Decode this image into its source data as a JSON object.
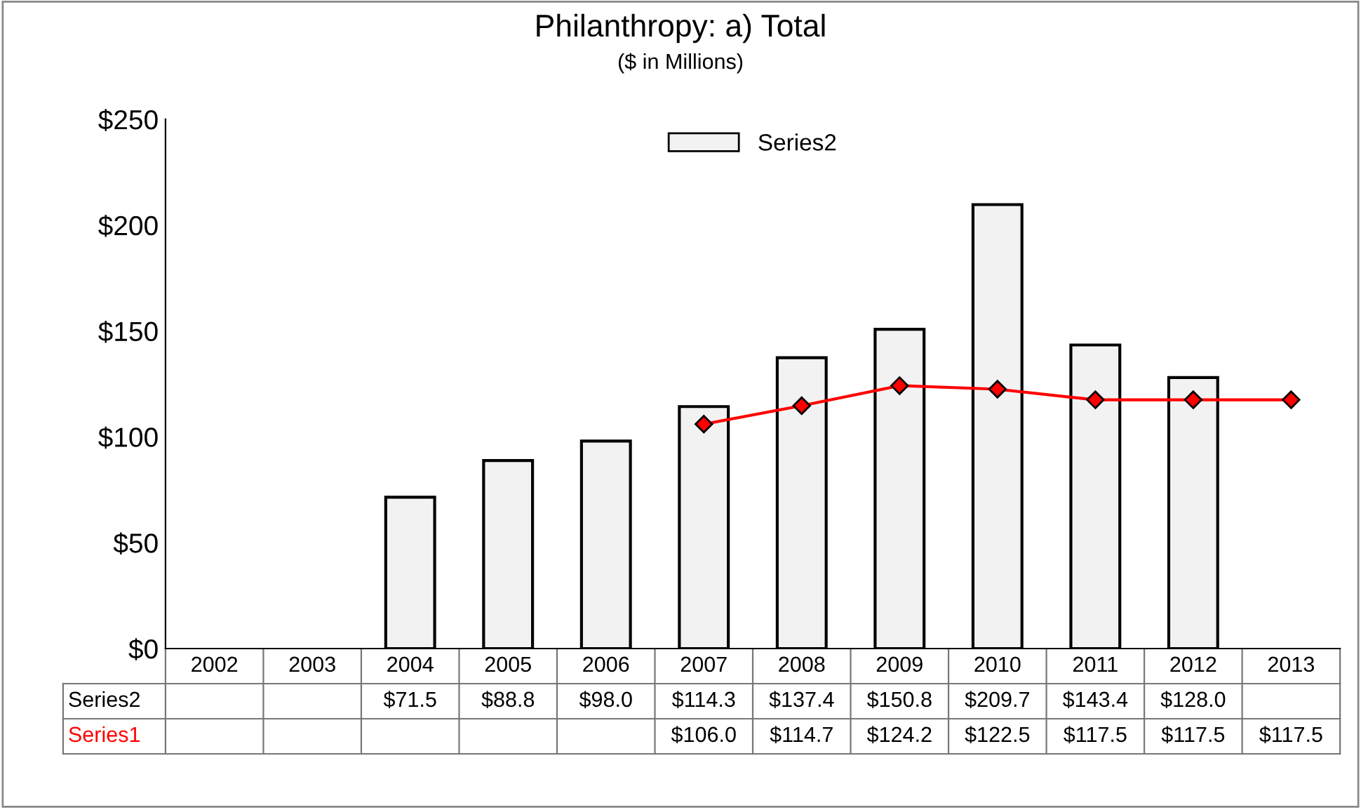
{
  "chart_data": {
    "type": "bar",
    "title": "Philanthropy: a) Total",
    "subtitle": "($ in Millions)",
    "categories": [
      "2002",
      "2003",
      "2004",
      "2005",
      "2006",
      "2007",
      "2008",
      "2009",
      "2010",
      "2011",
      "2012",
      "2013"
    ],
    "series": [
      {
        "name": "Series2",
        "color": "#f2f2f2",
        "values": [
          null,
          null,
          71.5,
          88.8,
          98.0,
          114.3,
          137.4,
          150.8,
          209.7,
          143.4,
          128.0,
          null
        ],
        "value_labels": [
          null,
          null,
          "$71.5",
          "$88.8",
          "$98.0",
          "$114.3",
          "$137.4",
          "$150.8",
          "$209.7",
          "$143.4",
          "$128.0",
          null
        ]
      },
      {
        "name": "Series1",
        "type": "line",
        "color": "#ff0000",
        "marker": "diamond",
        "values": [
          null,
          null,
          null,
          null,
          null,
          106.0,
          114.7,
          124.2,
          122.5,
          117.5,
          117.5,
          117.5
        ],
        "value_labels": [
          null,
          null,
          null,
          null,
          null,
          "$106.0",
          "$114.7",
          "$124.2",
          "$122.5",
          "$117.5",
          "$117.5",
          "$117.5"
        ]
      }
    ],
    "ylim": [
      0,
      250
    ],
    "yticks": [
      {
        "value": 0,
        "label": "$0"
      },
      {
        "value": 50,
        "label": "$50"
      },
      {
        "value": 100,
        "label": "$100"
      },
      {
        "value": 150,
        "label": "$150"
      },
      {
        "value": 200,
        "label": "$200"
      },
      {
        "value": 250,
        "label": "$250"
      }
    ],
    "legend": "top"
  }
}
